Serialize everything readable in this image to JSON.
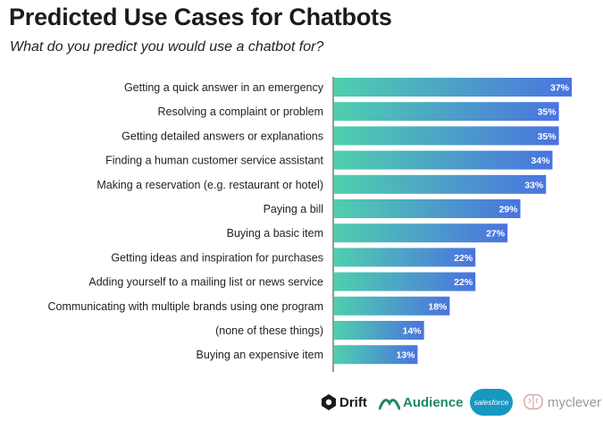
{
  "title": "Predicted Use Cases for Chatbots",
  "subtitle": "What do you predict you would use a chatbot for?",
  "colors": {
    "bar_start": "#4fcfae",
    "bar_end": "#4a73e0"
  },
  "chart_data": {
    "type": "bar",
    "orientation": "horizontal",
    "title": "Predicted Use Cases for Chatbots",
    "subtitle": "What do you predict you would use a chatbot for?",
    "categories": [
      "Getting a quick answer in an emergency",
      "Resolving a complaint or problem",
      "Getting detailed answers or explanations",
      "Finding a human customer service assistant",
      "Making a reservation (e.g. restaurant or hotel)",
      "Paying a bill",
      "Buying a basic item",
      "Getting ideas and inspiration for purchases",
      "Adding yourself to a mailing list or news service",
      "Communicating with multiple brands using one program",
      "(none of these things)",
      "Buying an expensive item"
    ],
    "values": [
      37,
      35,
      35,
      34,
      33,
      29,
      27,
      22,
      22,
      18,
      14,
      13
    ],
    "value_labels": [
      "37%",
      "35%",
      "35%",
      "34%",
      "33%",
      "29%",
      "27%",
      "22%",
      "22%",
      "18%",
      "14%",
      "13%"
    ],
    "unit": "%",
    "xlim": [
      0,
      37
    ],
    "grid": false,
    "legend": false
  },
  "logos": [
    {
      "icon": "drift-icon",
      "text": "Drift"
    },
    {
      "icon": "audience-icon",
      "text": "Audience"
    },
    {
      "icon": "salesforce-cloud-icon",
      "text": "salesforce"
    },
    {
      "icon": "myclever-brain-icon",
      "text": "myclever"
    }
  ]
}
